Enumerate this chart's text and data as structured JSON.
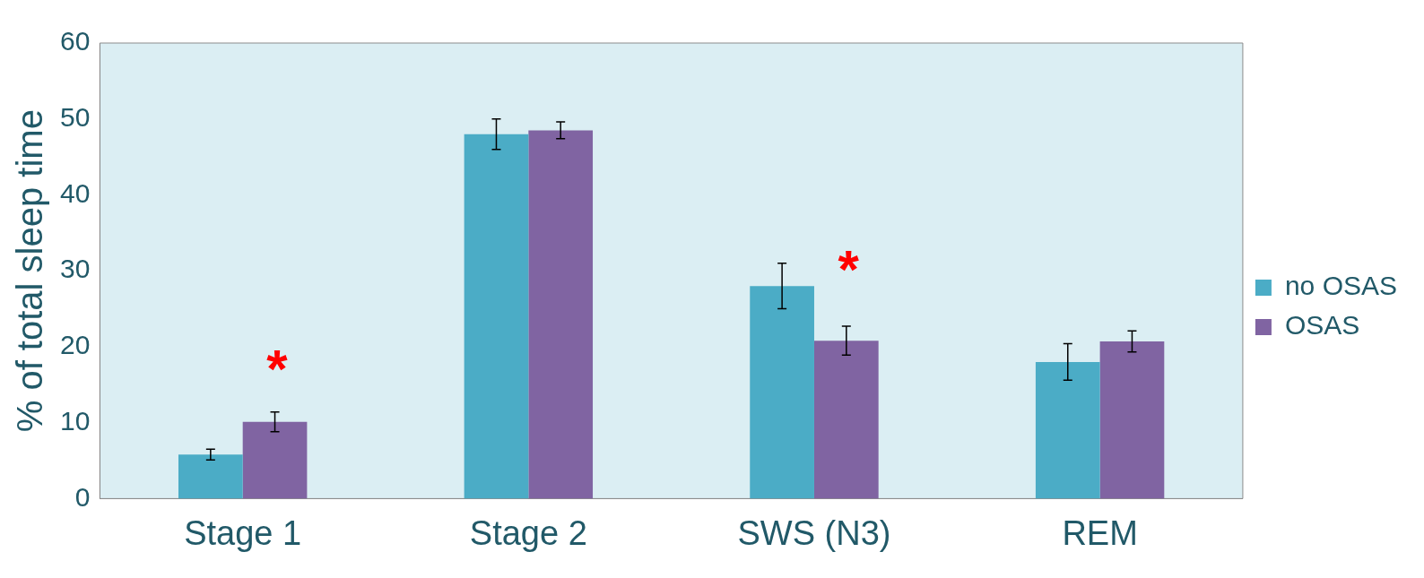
{
  "chart_data": {
    "type": "bar",
    "ylabel": "% of total sleep time",
    "categories": [
      "Stage 1",
      "Stage 2",
      "SWS (N3)",
      "REM"
    ],
    "series": [
      {
        "name": "no OSAS",
        "color": "#4bacc6",
        "values": [
          5.8,
          48,
          28,
          18
        ],
        "errors": [
          0.7,
          2,
          3,
          2.4
        ]
      },
      {
        "name": "OSAS",
        "color": "#8064a2",
        "values": [
          10.1,
          48.5,
          20.8,
          20.7
        ],
        "errors": [
          1.3,
          1.1,
          1.9,
          1.4
        ]
      }
    ],
    "ylim": [
      0,
      60
    ],
    "yticks": [
      0,
      10,
      20,
      30,
      40,
      50,
      60
    ],
    "grid": false,
    "legend": "right",
    "annotations": [
      "*",
      "*"
    ]
  }
}
